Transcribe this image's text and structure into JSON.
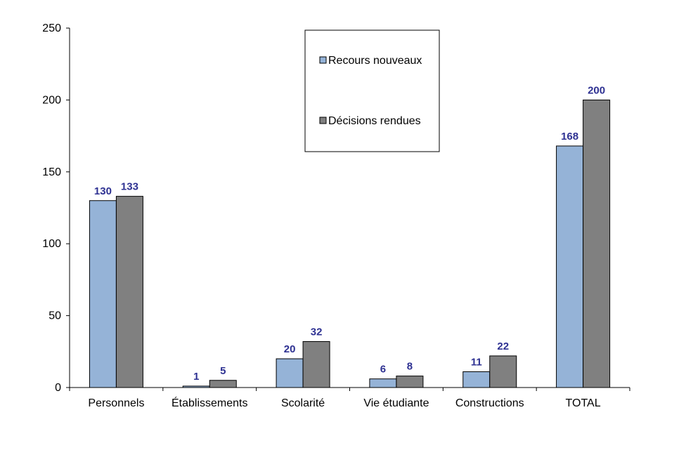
{
  "chart_data": {
    "type": "bar",
    "categories": [
      "Personnels",
      "Établissements",
      "Scolarité",
      "Vie étudiante",
      "Constructions",
      "TOTAL"
    ],
    "series": [
      {
        "name": "Recours nouveaux",
        "values": [
          130,
          1,
          20,
          6,
          11,
          168
        ],
        "color": "#95b3d7"
      },
      {
        "name": "Décisions rendues",
        "values": [
          133,
          5,
          32,
          8,
          22,
          200
        ],
        "color": "#808080"
      }
    ],
    "ylim": [
      0,
      250
    ],
    "yticks": [
      0,
      50,
      100,
      150,
      200,
      250
    ],
    "legend_position": "top-center",
    "grid": false,
    "data_label_color": "#2e3192"
  }
}
